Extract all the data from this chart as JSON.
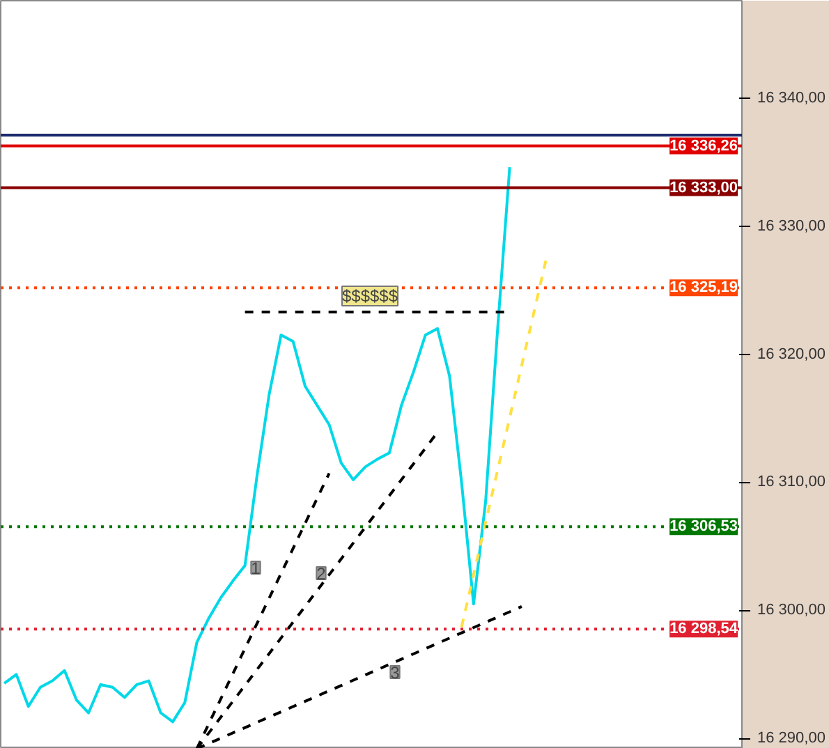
{
  "chart_data": {
    "type": "line",
    "tick_labels": "y",
    "grid": false,
    "categories": [
      null,
      null,
      null,
      null,
      null,
      null,
      null,
      null,
      null,
      null,
      null,
      null,
      null,
      null,
      null,
      null,
      null,
      null,
      null,
      null,
      null,
      null,
      null,
      null,
      null,
      null,
      null,
      null,
      null,
      null,
      null,
      null,
      null,
      null,
      null,
      null,
      null,
      null,
      null,
      null,
      null,
      null,
      null,
      null,
      null,
      null,
      null,
      null,
      null,
      null,
      null,
      null,
      null,
      null,
      null,
      null,
      null,
      null,
      null,
      null,
      null,
      null
    ],
    "ylim": [
      16289.2,
      16347.6
    ],
    "yticks": [
      {
        "value": 16290,
        "label": "16 290,00"
      },
      {
        "value": 16300,
        "label": "16 300,00"
      },
      {
        "value": 16310,
        "label": "16 310,00"
      },
      {
        "value": 16320,
        "label": "16 320,00"
      },
      {
        "value": 16330,
        "label": "16 330,00"
      },
      {
        "value": 16340,
        "label": "16 340,00"
      }
    ],
    "series": [
      {
        "color": "#00d8e8",
        "values": [
          16294.3,
          16295,
          16292.5,
          16294,
          16294.5,
          16295.3,
          16293,
          16292,
          16294.2,
          16294,
          16293.2,
          16294.2,
          16294.5,
          16292,
          16291.3,
          16292.8,
          16297.5,
          16299.4,
          16301,
          16302.3,
          16303.5,
          16310.5,
          16316.8,
          16321.5,
          16321,
          16317.5,
          16316,
          16314.5,
          16311.5,
          16310.2,
          16311.2,
          16311.8,
          16312.3,
          16316,
          16318.6,
          16321.5,
          16322,
          16318.3,
          16310,
          16300.5,
          16308.5,
          16322,
          16334.6,
          null,
          null,
          null,
          null,
          null,
          null,
          null,
          null,
          null,
          null,
          null,
          null,
          null,
          null,
          null,
          null,
          null,
          null,
          null
        ]
      },
      {
        "color": "#000000",
        "line_style": "dashed",
        "values": [
          null,
          null,
          null,
          null,
          null,
          null,
          null,
          null,
          null,
          null,
          null,
          null,
          null,
          null,
          null,
          null,
          16289.2,
          null,
          null,
          null,
          null,
          null,
          null,
          null,
          null,
          null,
          null,
          16310.7,
          null,
          null,
          null,
          null,
          null,
          null,
          null,
          null,
          null,
          null,
          null,
          null,
          null,
          null,
          null,
          null,
          null,
          null,
          null,
          null,
          null,
          null,
          null,
          null,
          null,
          null,
          null,
          null,
          null,
          null,
          null,
          null,
          null,
          null
        ]
      },
      {
        "color": "#000000",
        "line_style": "dashed",
        "values": [
          null,
          null,
          null,
          null,
          null,
          null,
          null,
          null,
          null,
          null,
          null,
          null,
          null,
          null,
          null,
          null,
          16289.2,
          null,
          null,
          null,
          null,
          null,
          null,
          null,
          null,
          null,
          null,
          null,
          null,
          null,
          null,
          null,
          null,
          null,
          null,
          null,
          16313.9,
          null,
          null,
          null,
          null,
          null,
          null,
          null,
          null,
          null,
          null,
          null,
          null,
          null,
          null,
          null,
          null,
          null,
          null,
          null,
          null,
          null,
          null,
          null,
          null,
          null
        ]
      },
      {
        "color": "#000000",
        "line_style": "dashed",
        "values": [
          null,
          null,
          null,
          null,
          null,
          null,
          null,
          null,
          null,
          null,
          null,
          null,
          null,
          null,
          null,
          null,
          16289.2,
          null,
          null,
          null,
          null,
          null,
          null,
          null,
          null,
          null,
          null,
          null,
          null,
          null,
          null,
          null,
          null,
          null,
          null,
          null,
          null,
          null,
          null,
          null,
          null,
          null,
          null,
          16300.3,
          null,
          null,
          null,
          null,
          null,
          null,
          null,
          null,
          null,
          null,
          null,
          null,
          null,
          null,
          null,
          null,
          null,
          null
        ]
      },
      {
        "color": "#000000",
        "line_style": "dashed",
        "values": [
          null,
          null,
          null,
          null,
          null,
          null,
          null,
          null,
          null,
          null,
          null,
          null,
          null,
          null,
          null,
          null,
          null,
          null,
          null,
          null,
          16323.3,
          null,
          null,
          null,
          null,
          null,
          null,
          null,
          null,
          null,
          null,
          null,
          null,
          null,
          null,
          null,
          null,
          null,
          null,
          null,
          null,
          null,
          16323.3,
          null,
          null,
          null,
          null,
          null,
          null,
          null,
          null,
          null,
          null,
          null,
          null,
          null,
          null,
          null,
          null,
          null,
          null,
          null
        ]
      },
      {
        "color": "#ffe040",
        "line_style": "dashed",
        "values": [
          null,
          null,
          null,
          null,
          null,
          null,
          null,
          null,
          null,
          null,
          null,
          null,
          null,
          null,
          null,
          null,
          null,
          null,
          null,
          null,
          null,
          null,
          null,
          null,
          null,
          null,
          null,
          null,
          null,
          null,
          null,
          null,
          null,
          null,
          null,
          null,
          null,
          null,
          16298.7,
          null,
          null,
          null,
          null,
          null,
          null,
          16327.3,
          null,
          null,
          null,
          null,
          null,
          null,
          null,
          null,
          null,
          null,
          null,
          null,
          null,
          null,
          null,
          null
        ]
      }
    ],
    "ref_lines": [
      {
        "axis": "y",
        "value": 16337.1,
        "color": "#1a2a6c",
        "line_style": "solid"
      },
      {
        "axis": "y",
        "value": 16336.26,
        "label": "16 336,26",
        "color": "#e00000",
        "line_style": "solid"
      },
      {
        "axis": "y",
        "value": 16333.0,
        "label": "16 333,00",
        "color": "#8b0000",
        "line_style": "solid"
      },
      {
        "axis": "y",
        "value": 16325.19,
        "label": "16 325,19",
        "color": "#ff4500",
        "line_style": "dotted"
      },
      {
        "axis": "y",
        "value": 16306.53,
        "label": "16 306,53",
        "color": "#007700",
        "line_style": "dotted"
      },
      {
        "axis": "y",
        "value": 16298.54,
        "label": "16 298,54",
        "color": "#e02030",
        "line_style": "dotted"
      }
    ],
    "annotations": [
      "$$$$$$",
      "1",
      "2",
      "3"
    ]
  }
}
